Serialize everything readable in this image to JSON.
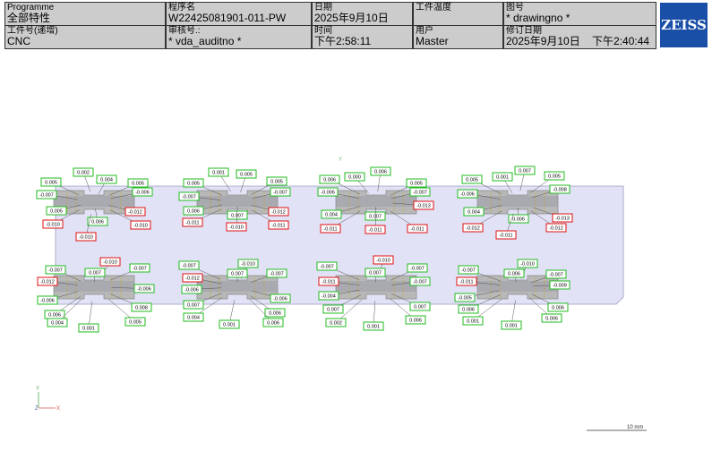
{
  "header": {
    "cells": [
      {
        "label": "Programme",
        "value": "全部特性"
      },
      {
        "label": "程序名",
        "value": "W22425081901-011-PW"
      },
      {
        "label": "日期",
        "value": "2025年9月10日"
      },
      {
        "label": "工件温度"
      },
      {
        "label": "图号",
        "value": "* drawingno *"
      },
      {
        "label": "工件号(递增)",
        "value": "CNC"
      },
      {
        "label": "审核号.:",
        "value": "* vda_auditno *"
      },
      {
        "label": "时间",
        "value": "下午2:58:11"
      },
      {
        "label": "用户",
        "value": "Master"
      },
      {
        "label": "修订日期",
        "value": "2025年9月10日    下午2:40:44"
      }
    ],
    "logo": "ZEISS"
  },
  "drawing": {
    "plate_axis": "Y",
    "triad": {
      "y": "Y",
      "z": "Z",
      "x": "X"
    },
    "scale": "10 mm",
    "labels": [
      {
        "text": "0.002",
        "color": "green"
      },
      {
        "text": "0.004",
        "color": "green"
      },
      {
        "text": "0.005",
        "color": "green"
      },
      {
        "text": "0.005",
        "color": "green"
      },
      {
        "text": "-0.007",
        "color": "green"
      },
      {
        "text": "-0.006",
        "color": "green"
      },
      {
        "text": "0.005",
        "color": "green"
      },
      {
        "text": "-0.012",
        "color": "red"
      },
      {
        "text": "0.006",
        "color": "green"
      },
      {
        "text": "-0.010",
        "color": "red"
      },
      {
        "text": "-0.010",
        "color": "red"
      },
      {
        "text": "-0.010",
        "color": "red"
      },
      {
        "text": "0.001",
        "color": "green"
      },
      {
        "text": "0.005",
        "color": "green"
      },
      {
        "text": "0.005",
        "color": "green"
      },
      {
        "text": "0.005",
        "color": "green"
      },
      {
        "text": "-0.007",
        "color": "green"
      },
      {
        "text": "-0.007",
        "color": "green"
      },
      {
        "text": "0.006",
        "color": "green"
      },
      {
        "text": "-0.012",
        "color": "red"
      },
      {
        "text": "0.007",
        "color": "green"
      },
      {
        "text": "-0.011",
        "color": "red"
      },
      {
        "text": "-0.010",
        "color": "red"
      },
      {
        "text": "-0.011",
        "color": "red"
      },
      {
        "text": "0.006",
        "color": "green"
      },
      {
        "text": "0.000",
        "color": "green"
      },
      {
        "text": "0.006",
        "color": "green"
      },
      {
        "text": "0.005",
        "color": "green"
      },
      {
        "text": "-0.006",
        "color": "green"
      },
      {
        "text": "-0.007",
        "color": "green"
      },
      {
        "text": "-0.013",
        "color": "red"
      },
      {
        "text": "0.004",
        "color": "green"
      },
      {
        "text": "0.007",
        "color": "green"
      },
      {
        "text": "-0.011",
        "color": "red"
      },
      {
        "text": "-0.011",
        "color": "red"
      },
      {
        "text": "-0.011",
        "color": "red"
      },
      {
        "text": "0.005",
        "color": "green"
      },
      {
        "text": "0.001",
        "color": "green"
      },
      {
        "text": "0.007",
        "color": "green"
      },
      {
        "text": "0.005",
        "color": "green"
      },
      {
        "text": "-0.008",
        "color": "green"
      },
      {
        "text": "-0.006",
        "color": "green"
      },
      {
        "text": "0.004",
        "color": "green"
      },
      {
        "text": "0.006",
        "color": "green"
      },
      {
        "text": "-0.013",
        "color": "red"
      },
      {
        "text": "-0.012",
        "color": "red"
      },
      {
        "text": "-0.012",
        "color": "red"
      },
      {
        "text": "-0.011",
        "color": "red"
      },
      {
        "text": "-0.010",
        "color": "red"
      },
      {
        "text": "-0.007",
        "color": "green"
      },
      {
        "text": "-0.007",
        "color": "green"
      },
      {
        "text": "0.007",
        "color": "green"
      },
      {
        "text": "-0.012",
        "color": "red"
      },
      {
        "text": "-0.006",
        "color": "green"
      },
      {
        "text": "-0.006",
        "color": "green"
      },
      {
        "text": "0.008",
        "color": "green"
      },
      {
        "text": "0.006",
        "color": "green"
      },
      {
        "text": "0.004",
        "color": "green"
      },
      {
        "text": "0.005",
        "color": "green"
      },
      {
        "text": "0.001",
        "color": "green"
      },
      {
        "text": "-0.007",
        "color": "green"
      },
      {
        "text": "-0.010",
        "color": "green"
      },
      {
        "text": "0.007",
        "color": "green"
      },
      {
        "text": "-0.007",
        "color": "green"
      },
      {
        "text": "-0.012",
        "color": "red"
      },
      {
        "text": "-0.006",
        "color": "green"
      },
      {
        "text": "-0.006",
        "color": "green"
      },
      {
        "text": "0.007",
        "color": "green"
      },
      {
        "text": "0.006",
        "color": "green"
      },
      {
        "text": "0.004",
        "color": "green"
      },
      {
        "text": "0.006",
        "color": "green"
      },
      {
        "text": "0.001",
        "color": "green"
      },
      {
        "text": "-0.010",
        "color": "red"
      },
      {
        "text": "-0.007",
        "color": "green"
      },
      {
        "text": "0.007",
        "color": "green"
      },
      {
        "text": "-0.007",
        "color": "green"
      },
      {
        "text": "-0.011",
        "color": "red"
      },
      {
        "text": "-0.007",
        "color": "green"
      },
      {
        "text": "-0.004",
        "color": "green"
      },
      {
        "text": "0.007",
        "color": "green"
      },
      {
        "text": "0.007",
        "color": "green"
      },
      {
        "text": "0.006",
        "color": "green"
      },
      {
        "text": "0.002",
        "color": "green"
      },
      {
        "text": "0.001",
        "color": "green"
      },
      {
        "text": "-0.010",
        "color": "green"
      },
      {
        "text": "-0.007",
        "color": "green"
      },
      {
        "text": "0.006",
        "color": "green"
      },
      {
        "text": "-0.007",
        "color": "green"
      },
      {
        "text": "-0.011",
        "color": "red"
      },
      {
        "text": "-0.009",
        "color": "green"
      },
      {
        "text": "-0.005",
        "color": "green"
      },
      {
        "text": "0.006",
        "color": "green"
      },
      {
        "text": "0.006",
        "color": "green"
      },
      {
        "text": "0.006",
        "color": "green"
      },
      {
        "text": "0.001",
        "color": "green"
      },
      {
        "text": "0.001",
        "color": "green"
      }
    ]
  }
}
